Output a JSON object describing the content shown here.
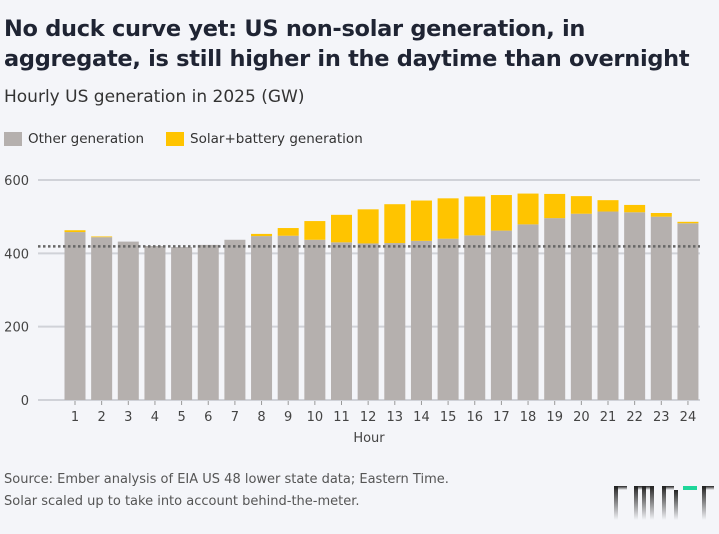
{
  "chart_data": {
    "type": "bar",
    "stacked": true,
    "title": "No duck curve yet: US non-solar generation, in aggregate, is still higher in the daytime than overnight",
    "subtitle": "Hourly US generation in 2025 (GW)",
    "xlabel": "Hour",
    "ylabel": "",
    "ylim": [
      0,
      600
    ],
    "yticks": [
      0,
      200,
      400,
      600
    ],
    "grid": true,
    "legend_position": "top-left",
    "categories": [
      "1",
      "2",
      "3",
      "4",
      "5",
      "6",
      "7",
      "8",
      "9",
      "10",
      "11",
      "12",
      "13",
      "14",
      "15",
      "16",
      "17",
      "18",
      "19",
      "20",
      "21",
      "22",
      "23",
      "24"
    ],
    "series": [
      {
        "name": "Other generation",
        "color": "#b5b0ae",
        "values": [
          458,
          444,
          432,
          420,
          417,
          423,
          437,
          447,
          448,
          437,
          430,
          427,
          428,
          434,
          440,
          449,
          462,
          479,
          496,
          508,
          514,
          512,
          500,
          482
        ]
      },
      {
        "name": "Solar+battery generation",
        "color": "#ffc400",
        "values": [
          5,
          2,
          0,
          0,
          0,
          0,
          0,
          6,
          21,
          51,
          75,
          93,
          106,
          110,
          110,
          106,
          97,
          84,
          66,
          48,
          31,
          20,
          10,
          4
        ]
      }
    ],
    "reference_line": {
      "value": 419,
      "style": "dotted",
      "color": "#666666"
    }
  },
  "footer": {
    "source_line1": "Source: Ember analysis of EIA US 48 lower state data; Eastern Time.",
    "source_line2": "Solar scaled up to take into account behind-the-meter."
  },
  "logo": {
    "text": "EMBER",
    "accent": "#1fd69a"
  },
  "colors": {
    "background": "#f4f5f9",
    "grid": "#d0d2d8"
  }
}
